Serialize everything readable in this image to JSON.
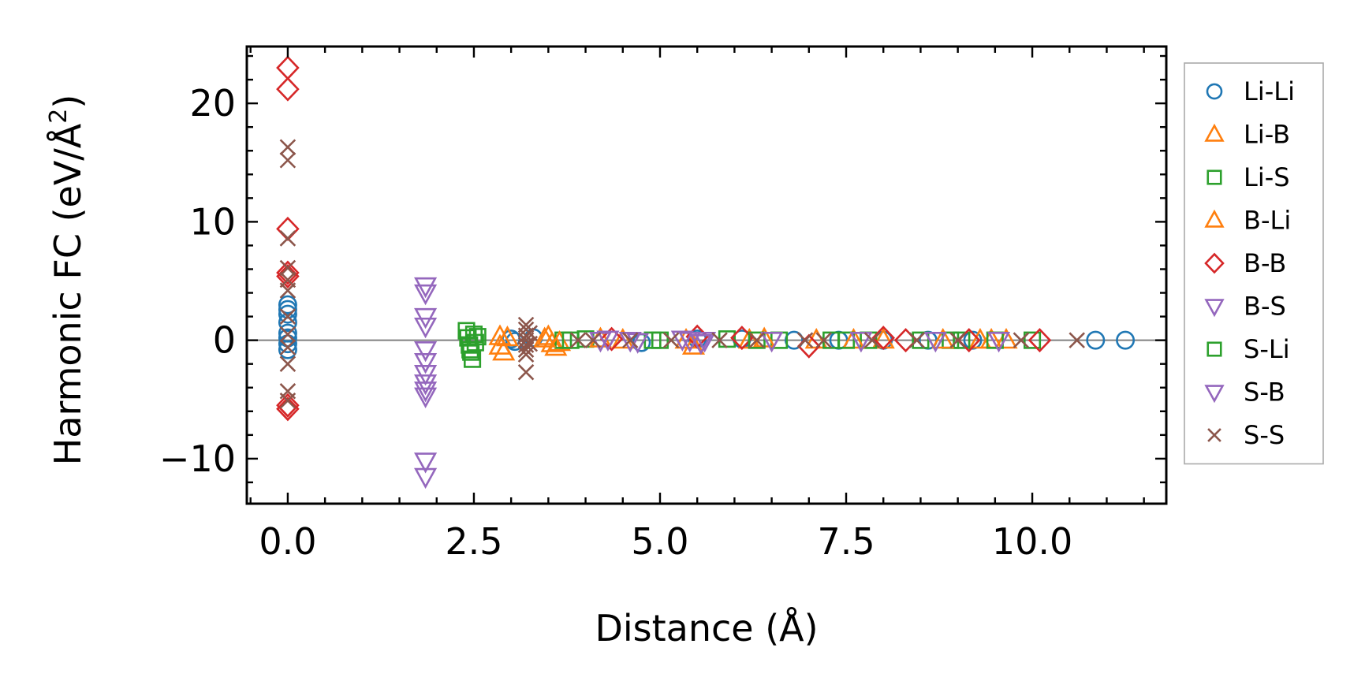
{
  "chart_data": {
    "type": "scatter",
    "title": "",
    "xlabel": "Distance (Å)",
    "ylabel_main": "Harmonic FC (eV/Å",
    "ylabel_sup": "2",
    "ylabel_close": ")",
    "xlim": [
      -0.55,
      11.8
    ],
    "ylim": [
      -13.8,
      24.8
    ],
    "xticks": [
      0.0,
      2.5,
      5.0,
      7.5,
      10.0
    ],
    "xtick_labels": [
      "0.0",
      "2.5",
      "5.0",
      "7.5",
      "10.0"
    ],
    "yticks": [
      -10,
      0,
      10,
      20
    ],
    "ytick_labels": [
      "−10",
      "0",
      "10",
      "20"
    ],
    "reference_line_y": 0,
    "legend_position": "outside-right",
    "series": [
      {
        "name": "Li-Li",
        "marker": "circle",
        "color": "#1f77b4",
        "points": [
          [
            0,
            3.0
          ],
          [
            0,
            2.6
          ],
          [
            0,
            2.2
          ],
          [
            0,
            1.5
          ],
          [
            0,
            0.6
          ],
          [
            0,
            0.2
          ],
          [
            0,
            -0.3
          ],
          [
            0,
            -0.8
          ],
          [
            3.0,
            0.1
          ],
          [
            3.05,
            -0.1
          ],
          [
            3.3,
            0.2
          ],
          [
            4.75,
            -0.2
          ],
          [
            5.5,
            0.1
          ],
          [
            6.1,
            0.1
          ],
          [
            6.8,
            0
          ],
          [
            7.4,
            0
          ],
          [
            8.0,
            0
          ],
          [
            8.6,
            0
          ],
          [
            9.2,
            0
          ],
          [
            10.85,
            0
          ],
          [
            11.25,
            0
          ]
        ]
      },
      {
        "name": "Li-B",
        "marker": "triangle-up",
        "color": "#ff7f0e",
        "points": [
          [
            2.85,
            0.3
          ],
          [
            2.85,
            -0.5
          ],
          [
            2.9,
            -1.0
          ],
          [
            3.5,
            0.3
          ],
          [
            3.55,
            -0.3
          ],
          [
            3.6,
            -0.6
          ],
          [
            4.5,
            0
          ],
          [
            5.45,
            -0.5
          ],
          [
            6.2,
            0
          ],
          [
            7.1,
            0
          ],
          [
            8.0,
            0
          ],
          [
            9.3,
            0
          ],
          [
            9.65,
            0
          ]
        ]
      },
      {
        "name": "Li-S",
        "marker": "square",
        "color": "#2ca02c",
        "points": [
          [
            2.4,
            0.8
          ],
          [
            2.42,
            0.2
          ],
          [
            2.44,
            -0.4
          ],
          [
            2.46,
            -1.0
          ],
          [
            2.48,
            -1.6
          ],
          [
            2.5,
            0.5
          ],
          [
            2.52,
            -0.2
          ],
          [
            2.45,
            -0.8
          ],
          [
            3.7,
            0
          ],
          [
            4.0,
            0.1
          ],
          [
            5.0,
            0
          ],
          [
            5.9,
            0.1
          ],
          [
            6.6,
            0
          ],
          [
            7.3,
            0
          ],
          [
            7.8,
            0
          ],
          [
            8.9,
            0
          ],
          [
            9.05,
            0
          ],
          [
            10.0,
            0
          ]
        ]
      },
      {
        "name": "B-Li",
        "marker": "triangle-up",
        "color": "#ff7f0e",
        "points": [
          [
            2.95,
            0.2
          ],
          [
            3.45,
            0.1
          ],
          [
            3.65,
            -0.2
          ],
          [
            4.2,
            0.1
          ],
          [
            5.35,
            0
          ],
          [
            6.4,
            0.1
          ],
          [
            7.6,
            0
          ],
          [
            8.8,
            0
          ],
          [
            9.45,
            0
          ]
        ]
      },
      {
        "name": "B-B",
        "marker": "diamond",
        "color": "#d62728",
        "points": [
          [
            0,
            23.0
          ],
          [
            0,
            21.2
          ],
          [
            0,
            9.4
          ],
          [
            0,
            5.7
          ],
          [
            0,
            5.4
          ],
          [
            0,
            -5.5
          ],
          [
            0,
            -5.8
          ],
          [
            4.35,
            0.1
          ],
          [
            5.5,
            0.3
          ],
          [
            6.1,
            0.2
          ],
          [
            7.0,
            -0.5
          ],
          [
            8.0,
            0.2
          ],
          [
            8.3,
            0
          ],
          [
            9.15,
            0
          ],
          [
            10.1,
            0
          ]
        ]
      },
      {
        "name": "B-S",
        "marker": "triangle-down",
        "color": "#9467bd",
        "points": [
          [
            1.85,
            4.6
          ],
          [
            1.85,
            4.0
          ],
          [
            1.85,
            2.0
          ],
          [
            1.85,
            1.2
          ],
          [
            1.85,
            -0.8
          ],
          [
            1.85,
            -1.8
          ],
          [
            1.85,
            -2.8
          ],
          [
            1.85,
            -3.6
          ],
          [
            1.85,
            -4.2
          ],
          [
            1.85,
            -4.7
          ],
          [
            1.85,
            -10.2
          ],
          [
            1.85,
            -11.5
          ],
          [
            4.2,
            0
          ],
          [
            4.6,
            0
          ],
          [
            5.4,
            0
          ],
          [
            5.55,
            -0.2
          ]
        ]
      },
      {
        "name": "S-Li",
        "marker": "square",
        "color": "#2ca02c",
        "points": [
          [
            2.55,
            0.3
          ],
          [
            3.8,
            0
          ],
          [
            4.9,
            0
          ],
          [
            6.3,
            0
          ],
          [
            7.5,
            0
          ],
          [
            8.5,
            0
          ],
          [
            9.5,
            0
          ]
        ]
      },
      {
        "name": "S-B",
        "marker": "triangle-down",
        "color": "#9467bd",
        "points": [
          [
            4.3,
            0.1
          ],
          [
            4.7,
            -0.1
          ],
          [
            5.3,
            0.1
          ],
          [
            5.6,
            0
          ],
          [
            6.5,
            0
          ],
          [
            7.7,
            0
          ],
          [
            8.7,
            0
          ],
          [
            9.55,
            0
          ]
        ]
      },
      {
        "name": "S-S",
        "marker": "x",
        "color": "#8c564b",
        "points": [
          [
            0,
            16.3
          ],
          [
            0,
            15.2
          ],
          [
            0,
            8.6
          ],
          [
            0,
            6.1
          ],
          [
            0,
            5.1
          ],
          [
            0,
            4.2
          ],
          [
            0,
            2.0
          ],
          [
            0,
            0.5
          ],
          [
            0,
            -0.6
          ],
          [
            0,
            -2.0
          ],
          [
            0,
            -4.3
          ],
          [
            0,
            -5.1
          ],
          [
            3.2,
            1.3
          ],
          [
            3.2,
            0.9
          ],
          [
            3.2,
            0.4
          ],
          [
            3.2,
            0
          ],
          [
            3.2,
            -0.4
          ],
          [
            3.2,
            -0.8
          ],
          [
            3.2,
            -1.2
          ],
          [
            3.2,
            -2.7
          ],
          [
            3.25,
            0.6
          ],
          [
            3.25,
            -0.3
          ],
          [
            3.9,
            0
          ],
          [
            4.1,
            0
          ],
          [
            4.6,
            0
          ],
          [
            5.15,
            0
          ],
          [
            5.8,
            0
          ],
          [
            6.3,
            0
          ],
          [
            6.95,
            0
          ],
          [
            7.2,
            0
          ],
          [
            7.85,
            0
          ],
          [
            8.45,
            0
          ],
          [
            9.0,
            0
          ],
          [
            9.85,
            0
          ],
          [
            10.6,
            0
          ]
        ]
      }
    ]
  }
}
